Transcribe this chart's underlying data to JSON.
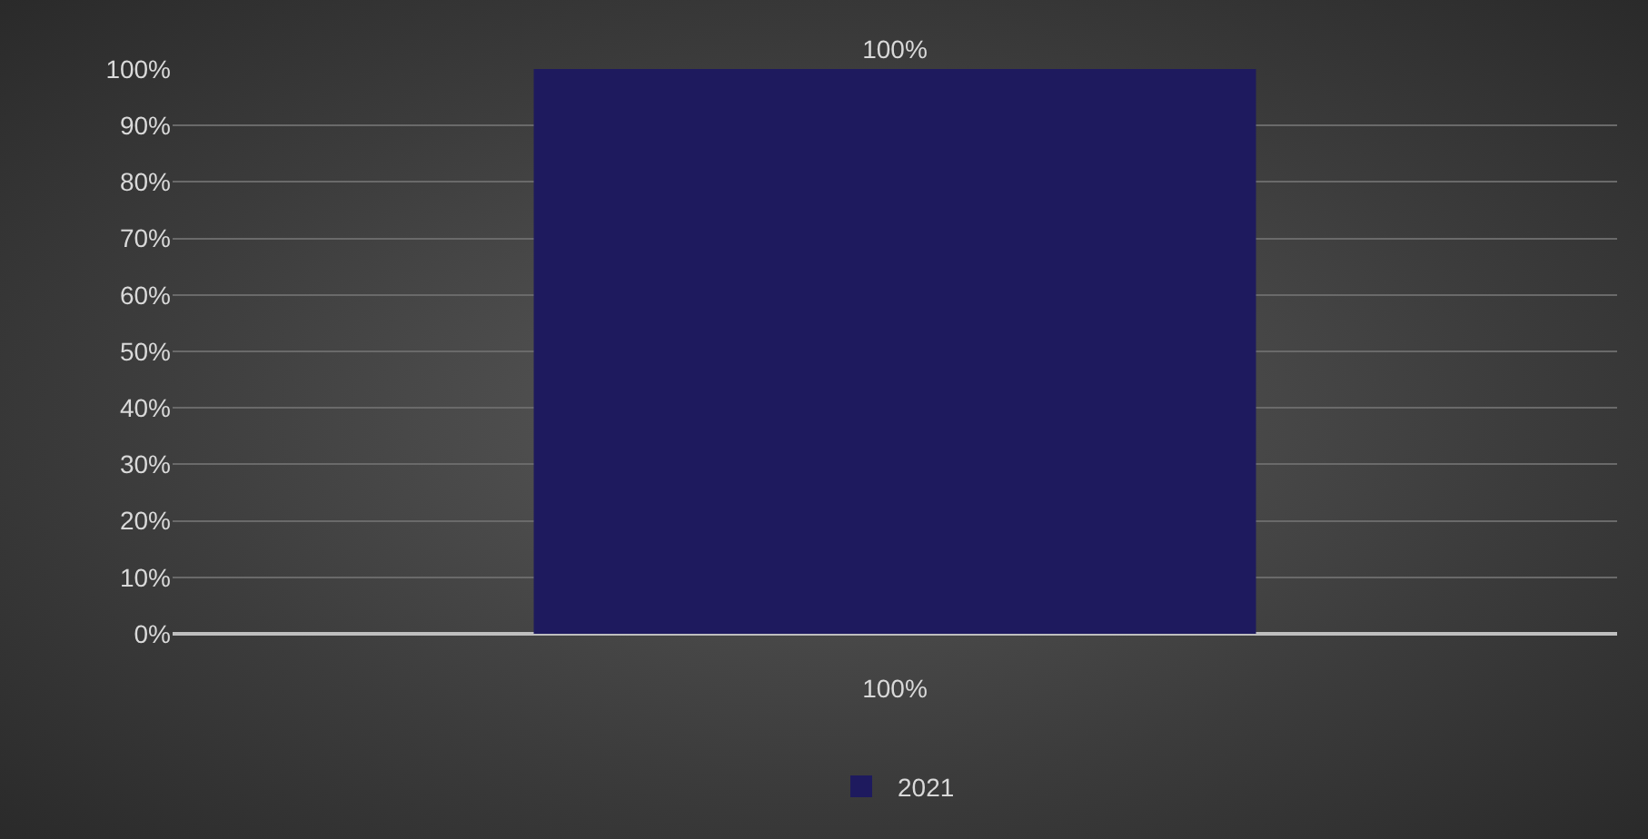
{
  "chart_data": {
    "type": "bar",
    "categories": [
      "100%"
    ],
    "series": [
      {
        "name": "2021",
        "color": "#1e1a5e",
        "values": [
          100
        ]
      }
    ],
    "value_labels": [
      "100%"
    ],
    "ylim": [
      0,
      100
    ],
    "yticks": [
      {
        "value": 0,
        "label": "0%"
      },
      {
        "value": 10,
        "label": "10%"
      },
      {
        "value": 20,
        "label": "20%"
      },
      {
        "value": 30,
        "label": "30%"
      },
      {
        "value": 40,
        "label": "40%"
      },
      {
        "value": 50,
        "label": "50%"
      },
      {
        "value": 60,
        "label": "60%"
      },
      {
        "value": 70,
        "label": "70%"
      },
      {
        "value": 80,
        "label": "80%"
      },
      {
        "value": 90,
        "label": "90%"
      },
      {
        "value": 100,
        "label": "100%"
      }
    ],
    "grid": "y",
    "legend": "bottom"
  }
}
